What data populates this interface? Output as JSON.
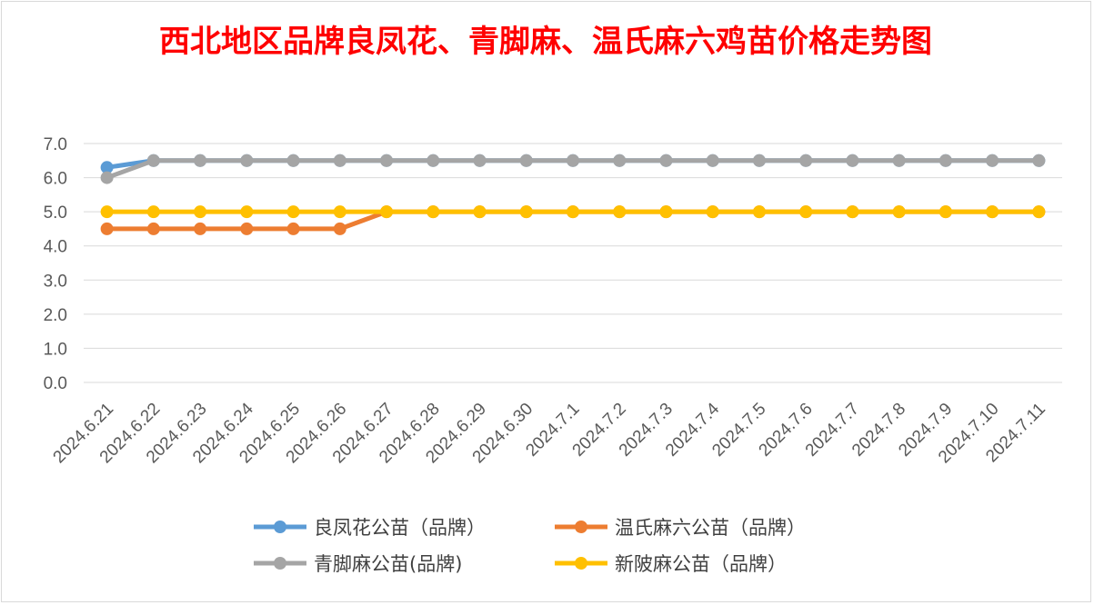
{
  "chart_data": {
    "type": "line",
    "title": "西北地区品牌良凤花、青脚麻、温氏麻六鸡苗价格走势图",
    "xlabel": "",
    "ylabel": "",
    "ylim": [
      0,
      7
    ],
    "yticks": [
      "0.0",
      "1.0",
      "2.0",
      "3.0",
      "4.0",
      "5.0",
      "6.0",
      "7.0"
    ],
    "grid": true,
    "legend_position": "bottom",
    "categories": [
      "2024.6.21",
      "2024.6.22",
      "2024.6.23",
      "2024.6.24",
      "2024.6.25",
      "2024.6.26",
      "2024.6.27",
      "2024.6.28",
      "2024.6.29",
      "2024.6.30",
      "2024.7.1",
      "2024.7.2",
      "2024.7.3",
      "2024.7.4",
      "2024.7.5",
      "2024.7.6",
      "2024.7.7",
      "2024.7.8",
      "2024.7.9",
      "2024.7.10",
      "2024.7.11"
    ],
    "series": [
      {
        "name": "良凤花公苗（品牌）",
        "color": "#5b9bd5",
        "values": [
          6.3,
          6.5,
          6.5,
          6.5,
          6.5,
          6.5,
          6.5,
          6.5,
          6.5,
          6.5,
          6.5,
          6.5,
          6.5,
          6.5,
          6.5,
          6.5,
          6.5,
          6.5,
          6.5,
          6.5,
          6.5
        ]
      },
      {
        "name": "温氏麻六公苗（品牌）",
        "color": "#ed7d31",
        "values": [
          4.5,
          4.5,
          4.5,
          4.5,
          4.5,
          4.5,
          5.0,
          5.0,
          5.0,
          5.0,
          5.0,
          5.0,
          5.0,
          5.0,
          5.0,
          5.0,
          5.0,
          5.0,
          5.0,
          5.0,
          5.0
        ]
      },
      {
        "name": "青脚麻公苗(品牌)",
        "color": "#a5a5a5",
        "values": [
          6.0,
          6.5,
          6.5,
          6.5,
          6.5,
          6.5,
          6.5,
          6.5,
          6.5,
          6.5,
          6.5,
          6.5,
          6.5,
          6.5,
          6.5,
          6.5,
          6.5,
          6.5,
          6.5,
          6.5,
          6.5
        ]
      },
      {
        "name": "新陂麻公苗（品牌）",
        "color": "#ffc000",
        "values": [
          5.0,
          5.0,
          5.0,
          5.0,
          5.0,
          5.0,
          5.0,
          5.0,
          5.0,
          5.0,
          5.0,
          5.0,
          5.0,
          5.0,
          5.0,
          5.0,
          5.0,
          5.0,
          5.0,
          5.0,
          5.0
        ]
      }
    ],
    "draw_order": [
      0,
      2,
      1,
      3
    ],
    "legend_order": [
      0,
      1,
      2,
      3
    ]
  }
}
